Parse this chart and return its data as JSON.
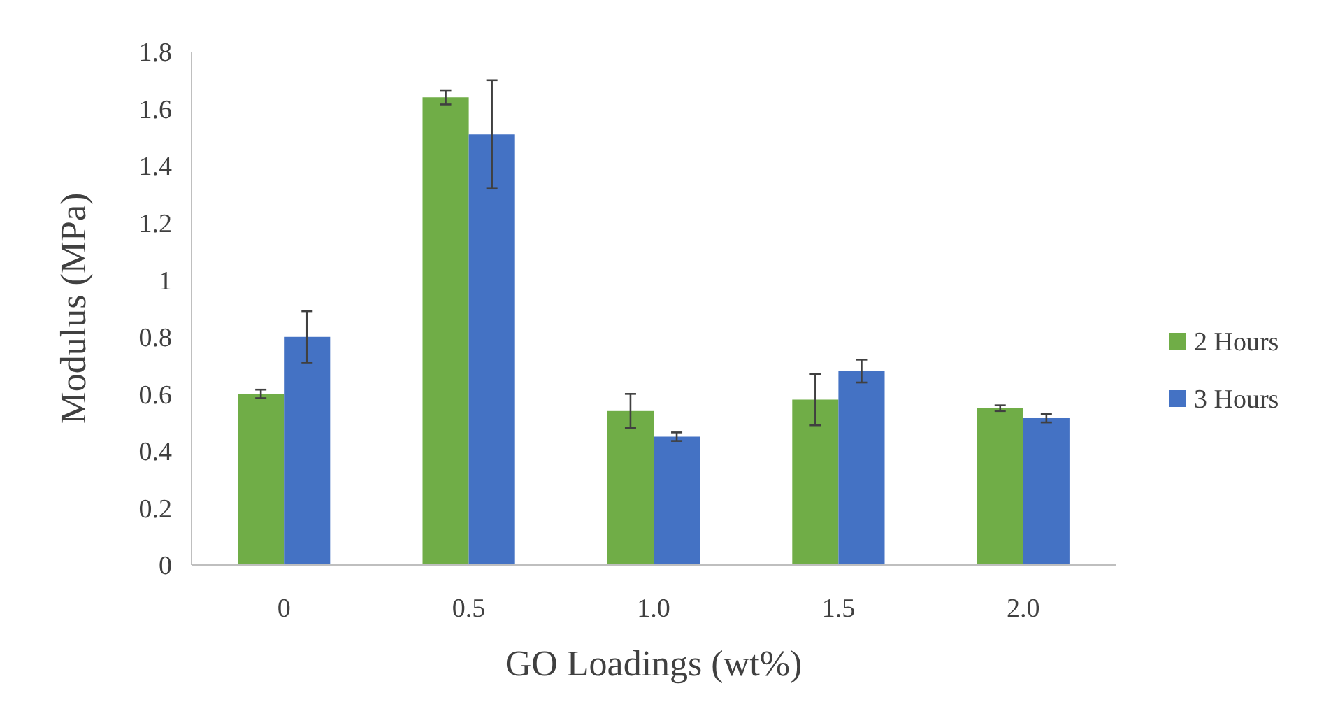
{
  "chart_data": {
    "type": "bar",
    "xlabel": "GO Loadings (wt%)",
    "ylabel": "Modulus (MPa)",
    "categories": [
      "0",
      "0.5",
      "1.0",
      "1.5",
      "2.0"
    ],
    "series": [
      {
        "name": "2 Hours",
        "color": "#70ad47",
        "values": [
          0.6,
          1.64,
          0.54,
          0.58,
          0.55
        ],
        "errors": [
          0.015,
          0.025,
          0.06,
          0.09,
          0.01
        ]
      },
      {
        "name": "3 Hours",
        "color": "#4472c4",
        "values": [
          0.8,
          1.51,
          0.45,
          0.68,
          0.515
        ],
        "errors": [
          0.09,
          0.19,
          0.015,
          0.04,
          0.015
        ]
      }
    ],
    "ylim": [
      0,
      1.8
    ],
    "yticks": [
      0,
      0.2,
      0.4,
      0.6,
      0.8,
      1,
      1.2,
      1.4,
      1.6,
      1.8
    ],
    "grid": false,
    "legend": "right"
  }
}
